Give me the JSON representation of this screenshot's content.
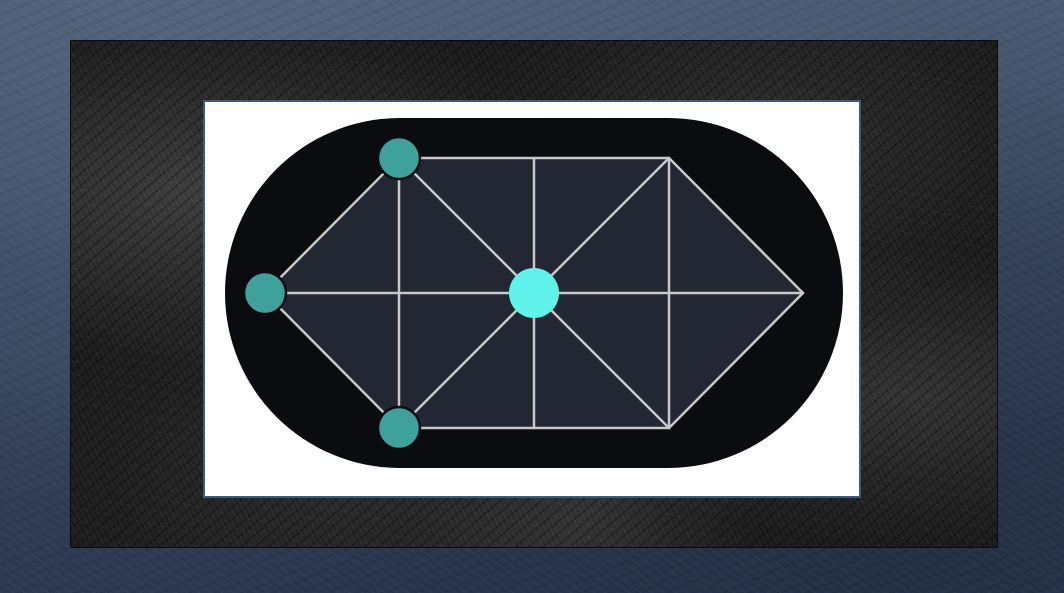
{
  "game": {
    "title": "",
    "board": {
      "background_color": "#0b0c0f",
      "cell_fill_color": "#222733",
      "line_color": "#c8c8c8"
    },
    "pieces": [
      {
        "id": "attacker-1",
        "role": "attacker",
        "color": "#3fa19c",
        "node": "top-left-corner"
      },
      {
        "id": "attacker-2",
        "role": "attacker",
        "color": "#3fa19c",
        "node": "left-apex"
      },
      {
        "id": "attacker-3",
        "role": "attacker",
        "color": "#3fa19c",
        "node": "bottom-left-corner"
      },
      {
        "id": "defender-1",
        "role": "defender",
        "color": "#5ff3ec",
        "node": "center"
      }
    ]
  }
}
